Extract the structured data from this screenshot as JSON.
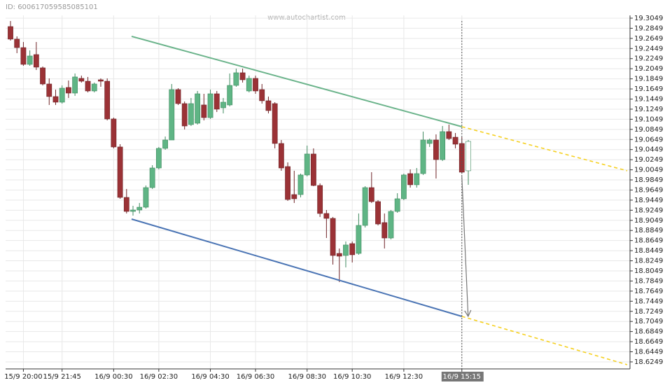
{
  "chart_data": {
    "type": "candlestick",
    "id_label": "ID: 600617059585085101",
    "watermark": "www.autochartist.com",
    "categories": [
      null,
      null,
      "15/9 20:00",
      null,
      null,
      null,
      null,
      null,
      "15/9 21:45",
      null,
      null,
      null,
      null,
      null,
      null,
      null,
      "16/9 00:30",
      null,
      null,
      null,
      null,
      null,
      null,
      "16/9 02:30",
      null,
      null,
      null,
      null,
      null,
      null,
      null,
      "16/9 04:30",
      null,
      null,
      null,
      null,
      null,
      null,
      "16/9 06:30",
      null,
      null,
      null,
      null,
      null,
      null,
      null,
      "16/9 08:30",
      null,
      null,
      null,
      null,
      null,
      null,
      "16/9 10:30",
      null,
      null,
      null,
      null,
      null,
      null,
      null,
      "16/9 12:30",
      null,
      null,
      null,
      null,
      null,
      null,
      null,
      null,
      "16/9 15:15",
      null
    ],
    "open": [
      19.2883,
      19.2634,
      19.2467,
      19.2135,
      19.2329,
      19.2066,
      19.1747,
      19.1498,
      19.1387,
      19.1678,
      19.1567,
      19.1858,
      19.1802,
      19.1609,
      19.183,
      19.1802,
      19.1055,
      19.0501,
      18.9503,
      18.9226,
      18.9254,
      18.9309,
      18.9697,
      19.0085,
      19.0473,
      19.0639,
      19.1636,
      19.1359,
      19.0944,
      19.0971,
      19.1332,
      19.1082,
      19.1553,
      19.1276,
      19.1332,
      19.1719,
      19.1969,
      19.1609,
      19.1858,
      19.1636,
      19.1415,
      19.1359,
      19.057,
      19.0113,
      18.9559,
      18.9559,
      18.9947,
      19.0362,
      18.9739,
      18.9185,
      18.9088,
      18.8395,
      18.8354,
      18.8589,
      18.8395,
      18.8949,
      18.9697,
      18.942,
      18.9005,
      18.87,
      18.9226,
      18.9476,
      18.9974,
      18.9753,
      18.9974,
      19.057,
      19.0639,
      19.0251,
      19.0805,
      19.0694,
      19.057,
      19.003
    ],
    "high": [
      19.2994,
      19.2689,
      19.2578,
      19.2412,
      19.2578,
      19.2093,
      19.1858,
      19.1636,
      19.1719,
      19.1816,
      19.1955,
      19.1913,
      19.1886,
      19.1775,
      19.1858,
      19.1858,
      19.1082,
      19.0556,
      18.967,
      18.9337,
      18.9393,
      18.9739,
      19.014,
      19.0501,
      19.0708,
      19.1747,
      19.1664,
      19.1401,
      19.147,
      19.1609,
      19.1553,
      19.1636,
      19.1609,
      19.147,
      19.1955,
      19.2052,
      19.2052,
      19.1913,
      19.1913,
      19.1747,
      19.1498,
      19.1387,
      19.0639,
      19.0196,
      19.003,
      18.9974,
      19.0528,
      19.0473,
      18.978,
      18.9254,
      18.9116,
      18.8492,
      18.8631,
      18.8631,
      18.9185,
      18.9725,
      19.0002,
      18.9448,
      18.9185,
      18.9254,
      18.9586,
      18.9974,
      19.0057,
      19.0085,
      19.0805,
      19.0667,
      19.075,
      19.0916,
      19.0944,
      19.0778,
      19.0694,
      19.0639
    ],
    "low": [
      19.2606,
      19.2357,
      19.2107,
      19.2107,
      19.2024,
      19.1719,
      19.1332,
      19.1332,
      19.1359,
      19.147,
      19.1512,
      19.1775,
      19.1581,
      19.1581,
      19.1692,
      19.1027,
      19.0473,
      18.9476,
      18.9185,
      18.9143,
      18.9185,
      18.9282,
      18.967,
      19.0057,
      19.0445,
      19.0639,
      19.1332,
      19.0847,
      19.0916,
      19.0944,
      19.1027,
      19.1055,
      19.1193,
      19.1165,
      19.1304,
      19.1692,
      19.1775,
      19.1581,
      19.1553,
      19.1359,
      19.1165,
      19.0473,
      19.003,
      18.9434,
      18.9393,
      18.9503,
      18.9919,
      18.9725,
      18.9116,
      18.87,
      18.8174,
      18.7828,
      18.8118,
      18.8215,
      18.8368,
      18.8908,
      18.9393,
      18.8949,
      18.8492,
      18.8672,
      18.9199,
      18.9448,
      18.9697,
      18.9697,
      18.9947,
      19.0501,
      18.9877,
      19.0224,
      19.0639,
      19.0473,
      18.9974,
      18.9753
    ],
    "close": [
      19.2634,
      19.2467,
      19.2135,
      19.2301,
      19.208,
      19.1747,
      19.1498,
      19.1387,
      19.1664,
      19.1567,
      19.1886,
      19.1802,
      19.1609,
      19.1747,
      19.1802,
      19.1055,
      19.0501,
      18.9503,
      18.9226,
      18.9254,
      18.9309,
      18.9697,
      19.0085,
      19.0473,
      19.0639,
      19.1636,
      19.1359,
      19.0916,
      19.1359,
      19.1553,
      19.1082,
      19.1553,
      19.1249,
      19.1387,
      19.1719,
      19.1969,
      19.183,
      19.1858,
      19.1609,
      19.1415,
      19.1221,
      19.057,
      19.0085,
      18.9462,
      18.9476,
      18.9947,
      19.0362,
      18.9739,
      18.9185,
      18.9088,
      18.8354,
      18.834,
      18.8562,
      18.8368,
      18.8949,
      18.9697,
      18.942,
      18.8977,
      18.87,
      18.9226,
      18.9476,
      18.9947,
      18.9753,
      18.9974,
      19.0639,
      19.0639,
      19.0251,
      19.0805,
      19.0667,
      19.0556,
      19.0002,
      19.0611
    ],
    "up_color": "#5fb585",
    "down_color": "#9b3236",
    "ylim": [
      18.611,
      19.3104
    ],
    "yticks": [
      19.3049,
      19.2849,
      19.2649,
      19.2449,
      19.2249,
      19.2049,
      19.1849,
      19.1649,
      19.1449,
      19.1249,
      19.1049,
      19.0849,
      19.0649,
      19.0449,
      19.0249,
      19.0049,
      18.9849,
      18.9649,
      18.9449,
      18.9249,
      18.9049,
      18.8849,
      18.8649,
      18.8449,
      18.8249,
      18.8049,
      18.7849,
      18.7649,
      18.7449,
      18.7249,
      18.7049,
      18.6849,
      18.6649,
      18.6449,
      18.6249
    ],
    "grid": true,
    "pattern": {
      "resistance": [
        19.2689,
        19.0902,
        19.003
      ],
      "resistance_color": "#6ab38a",
      "support": [
        18.9074,
        18.7149,
        18.6193
      ],
      "support_color": "#4a74b4",
      "forecast_color": "#f5d020"
    }
  }
}
